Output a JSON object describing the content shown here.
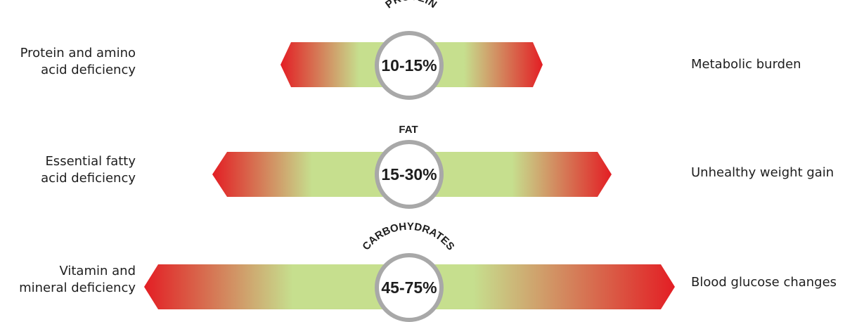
{
  "colors": {
    "bar_end": "#e31e24",
    "bar_mid": "#c6df8e",
    "ring": "#a8a8a8",
    "ring_inner": "#ffffff",
    "text": "#1e1e1e"
  },
  "rows": [
    {
      "title": "PROTEIN",
      "range": "10-15%",
      "low_label": [
        "Protein and amino",
        "acid deficiency"
      ],
      "high_label": "Metabolic burden"
    },
    {
      "title": "FAT",
      "range": "15-30%",
      "low_label": [
        "Essential fatty",
        "acid deficiency"
      ],
      "high_label": "Unhealthy weight gain"
    },
    {
      "title": "CARBOHYDRATES",
      "range": "45-75%",
      "low_label": [
        "Vitamin and",
        "mineral deficiency"
      ],
      "high_label": "Blood glucose changes"
    }
  ]
}
